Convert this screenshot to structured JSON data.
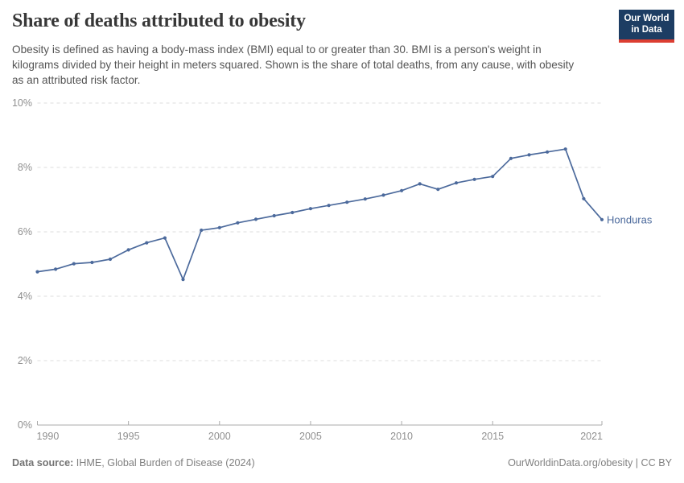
{
  "header": {
    "title": "Share of deaths attributed to obesity",
    "subtitle": "Obesity is defined as having a body-mass index (BMI) equal to or greater than 30. BMI is a person's weight in kilograms divided by their height in meters squared. Shown is the share of total deaths, from any cause, with obesity as an attributed risk factor."
  },
  "logo": {
    "line1": "Our World",
    "line2": "in Data",
    "bg_color": "#1d3d63",
    "accent_color": "#dc3e32"
  },
  "chart_data": {
    "type": "line",
    "title": "Share of deaths attributed to obesity",
    "entity": "Honduras",
    "x": [
      1990,
      1991,
      1992,
      1993,
      1994,
      1995,
      1996,
      1997,
      1998,
      1999,
      2000,
      2001,
      2002,
      2003,
      2004,
      2005,
      2006,
      2007,
      2008,
      2009,
      2010,
      2011,
      2012,
      2013,
      2014,
      2015,
      2016,
      2017,
      2018,
      2019,
      2020,
      2021
    ],
    "values": [
      4.76,
      4.84,
      5.01,
      5.05,
      5.15,
      5.44,
      5.66,
      5.81,
      4.52,
      6.05,
      6.13,
      6.28,
      6.39,
      6.5,
      6.6,
      6.72,
      6.82,
      6.92,
      7.02,
      7.14,
      7.28,
      7.49,
      7.32,
      7.52,
      7.63,
      7.72,
      8.28,
      8.39,
      8.48,
      8.57,
      7.03,
      6.38
    ],
    "unit": "%",
    "ylim": [
      0,
      10
    ],
    "yticks": [
      0,
      2,
      4,
      6,
      8,
      10
    ],
    "xticks": [
      1990,
      1995,
      2000,
      2005,
      2010,
      2015,
      2021
    ],
    "grid": "horizontal-dashed",
    "legend_position": "end-of-line-label",
    "line_color": "#4c6a9c",
    "tick_label_color": "#8f8f8f",
    "gridline_color": "#dddddd",
    "axis_color": "#ababab"
  },
  "footer": {
    "source_label": "Data source:",
    "source_text": " IHME, Global Burden of Disease (2024)",
    "credit": "OurWorldinData.org/obesity | CC BY"
  }
}
